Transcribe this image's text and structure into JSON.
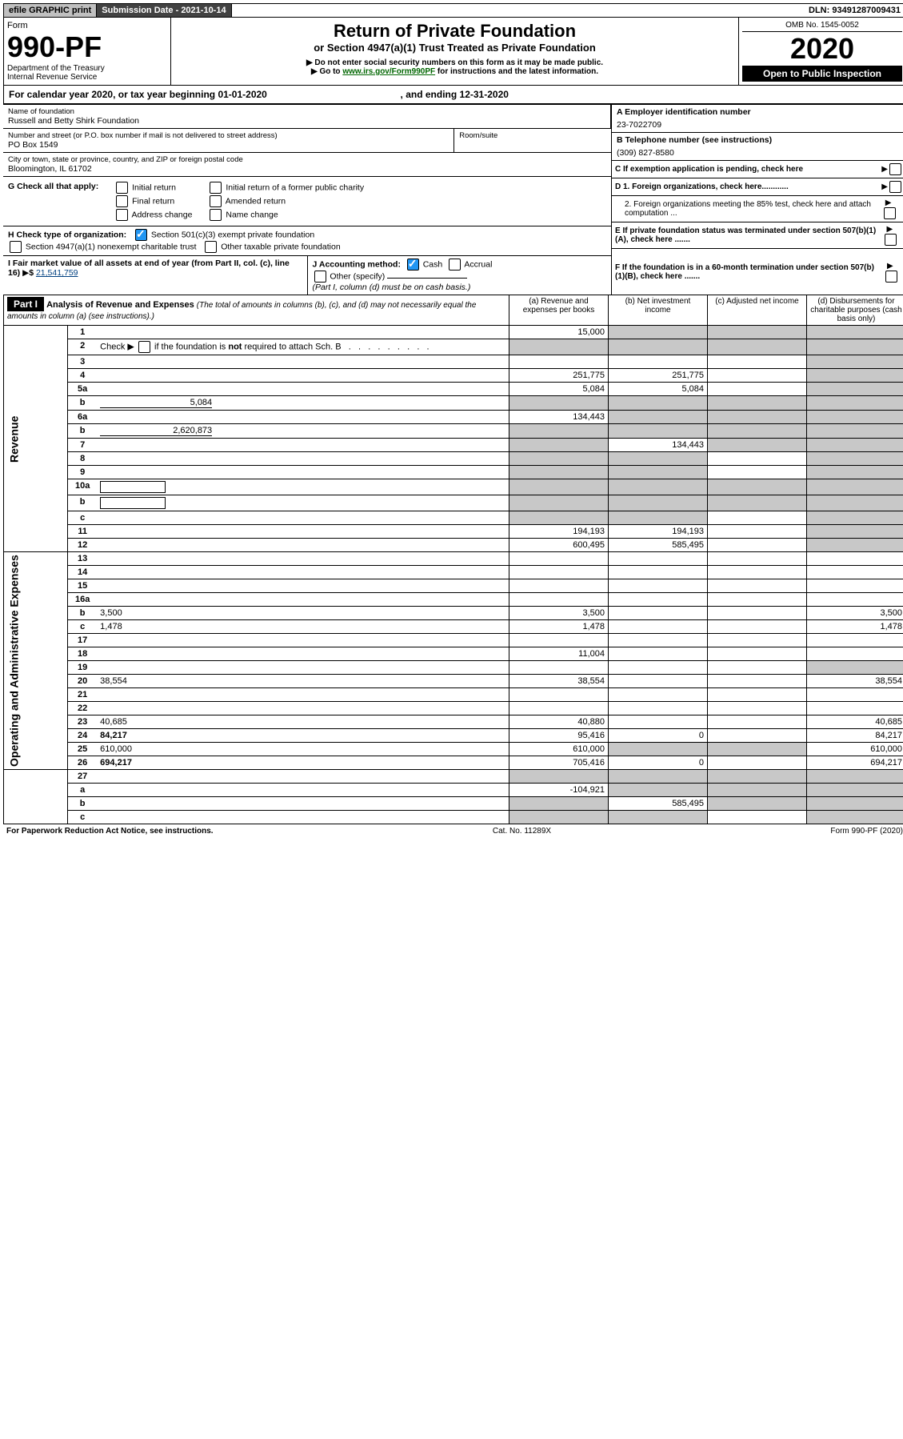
{
  "topbar": {
    "print": "efile GRAPHIC print",
    "subdate": "Submission Date - 2021-10-14",
    "dln": "DLN: 93491287009431"
  },
  "header": {
    "form": "Form",
    "formno": "990-PF",
    "dept": "Department of the Treasury",
    "irs": "Internal Revenue Service",
    "title": "Return of Private Foundation",
    "subtitle": "or Section 4947(a)(1) Trust Treated as Private Foundation",
    "note1": "▶ Do not enter social security numbers on this form as it may be made public.",
    "note2_pre": "▶ Go to ",
    "note2_link": "www.irs.gov/Form990PF",
    "note2_post": " for instructions and the latest information.",
    "omb": "OMB No. 1545-0052",
    "year": "2020",
    "openpub": "Open to Public Inspection"
  },
  "calyr": {
    "pre": "For calendar year 2020, or tax year beginning ",
    "begin": "01-01-2020",
    "mid": " , and ending ",
    "end": "12-31-2020"
  },
  "info": {
    "name_label": "Name of foundation",
    "name": "Russell and Betty Shirk Foundation",
    "addr_label": "Number and street (or P.O. box number if mail is not delivered to street address)",
    "addr": "PO Box 1549",
    "room_label": "Room/suite",
    "city_label": "City or town, state or province, country, and ZIP or foreign postal code",
    "city": "Bloomington, IL  61702",
    "ein_label": "A Employer identification number",
    "ein": "23-7022709",
    "tel_label": "B Telephone number (see instructions)",
    "tel": "(309) 827-8580",
    "c": "C If exemption application is pending, check here",
    "g": "G Check all that apply:",
    "g_opts": [
      "Initial return",
      "Final return",
      "Address change",
      "Initial return of a former public charity",
      "Amended return",
      "Name change"
    ],
    "d1": "D 1. Foreign organizations, check here............",
    "d2": "2. Foreign organizations meeting the 85% test, check here and attach computation ...",
    "e": "E If private foundation status was terminated under section 507(b)(1)(A), check here .......",
    "h": "H Check type of organization:",
    "h1": "Section 501(c)(3) exempt private foundation",
    "h2": "Section 4947(a)(1) nonexempt charitable trust",
    "h3": "Other taxable private foundation",
    "f": "F If the foundation is in a 60-month termination under section 507(b)(1)(B), check here .......",
    "i": "I Fair market value of all assets at end of year (from Part II, col. (c), line 16)",
    "i_val": "21,541,759",
    "j": "J Accounting method:",
    "j_cash": "Cash",
    "j_accr": "Accrual",
    "j_other": "Other (specify)",
    "j_note": "(Part I, column (d) must be on cash basis.)"
  },
  "part1": {
    "label": "Part I",
    "title": "Analysis of Revenue and Expenses",
    "title_note": "(The total of amounts in columns (b), (c), and (d) may not necessarily equal the amounts in column (a) (see instructions).)",
    "col_a": "(a) Revenue and expenses per books",
    "col_b": "(b) Net investment income",
    "col_c": "(c) Adjusted net income",
    "col_d": "(d) Disbursements for charitable purposes (cash basis only)"
  },
  "sections": {
    "rev": "Revenue",
    "exp": "Operating and Administrative Expenses"
  },
  "rows": [
    {
      "n": "1",
      "d": "",
      "a": "15,000",
      "b": "",
      "c": "",
      "sb": 1,
      "sc": 1,
      "sd": 1
    },
    {
      "n": "2",
      "d": "",
      "a": "",
      "b": "",
      "c": "",
      "sa": 1,
      "sb": 1,
      "sc": 1,
      "sd": 1,
      "html": 1
    },
    {
      "n": "3",
      "d": "",
      "a": "",
      "b": "",
      "c": "",
      "sd": 1
    },
    {
      "n": "4",
      "d": "",
      "a": "251,775",
      "b": "251,775",
      "c": "",
      "sd": 1
    },
    {
      "n": "5a",
      "d": "",
      "a": "5,084",
      "b": "5,084",
      "c": "",
      "sd": 1
    },
    {
      "n": "b",
      "d": "",
      "fill": "5,084",
      "a": "",
      "b": "",
      "c": "",
      "sa": 1,
      "sb": 1,
      "sc": 1,
      "sd": 1
    },
    {
      "n": "6a",
      "d": "",
      "a": "134,443",
      "b": "",
      "c": "",
      "sb": 1,
      "sc": 1,
      "sd": 1
    },
    {
      "n": "b",
      "d": "",
      "fill": "2,620,873",
      "a": "",
      "b": "",
      "c": "",
      "sa": 1,
      "sb": 1,
      "sc": 1,
      "sd": 1
    },
    {
      "n": "7",
      "d": "",
      "a": "",
      "b": "134,443",
      "c": "",
      "sa": 1,
      "sc": 1,
      "sd": 1
    },
    {
      "n": "8",
      "d": "",
      "a": "",
      "b": "",
      "c": "",
      "sa": 1,
      "sb": 1,
      "sd": 1
    },
    {
      "n": "9",
      "d": "",
      "a": "",
      "b": "",
      "c": "",
      "sa": 1,
      "sb": 1,
      "sd": 1
    },
    {
      "n": "10a",
      "d": "",
      "box": 1,
      "a": "",
      "b": "",
      "c": "",
      "sa": 1,
      "sb": 1,
      "sc": 1,
      "sd": 1
    },
    {
      "n": "b",
      "d": "",
      "box": 1,
      "a": "",
      "b": "",
      "c": "",
      "sa": 1,
      "sb": 1,
      "sc": 1,
      "sd": 1
    },
    {
      "n": "c",
      "d": "",
      "a": "",
      "b": "",
      "c": "",
      "sa": 1,
      "sb": 1,
      "sd": 1
    },
    {
      "n": "11",
      "d": "",
      "a": "194,193",
      "b": "194,193",
      "c": "",
      "sd": 1
    },
    {
      "n": "12",
      "d": "",
      "bold": 1,
      "a": "600,495",
      "b": "585,495",
      "c": "",
      "sd": 1
    },
    {
      "n": "13",
      "d": "",
      "a": "",
      "b": "",
      "c": ""
    },
    {
      "n": "14",
      "d": "",
      "a": "",
      "b": "",
      "c": ""
    },
    {
      "n": "15",
      "d": "",
      "a": "",
      "b": "",
      "c": ""
    },
    {
      "n": "16a",
      "d": "",
      "a": "",
      "b": "",
      "c": ""
    },
    {
      "n": "b",
      "d": "3,500",
      "a": "3,500",
      "b": "",
      "c": ""
    },
    {
      "n": "c",
      "d": "1,478",
      "a": "1,478",
      "b": "",
      "c": ""
    },
    {
      "n": "17",
      "d": "",
      "a": "",
      "b": "",
      "c": ""
    },
    {
      "n": "18",
      "d": "",
      "a": "11,004",
      "b": "",
      "c": ""
    },
    {
      "n": "19",
      "d": "",
      "a": "",
      "b": "",
      "c": "",
      "sd": 1
    },
    {
      "n": "20",
      "d": "38,554",
      "a": "38,554",
      "b": "",
      "c": ""
    },
    {
      "n": "21",
      "d": "",
      "a": "",
      "b": "",
      "c": ""
    },
    {
      "n": "22",
      "d": "",
      "a": "",
      "b": "",
      "c": ""
    },
    {
      "n": "23",
      "d": "40,685",
      "a": "40,880",
      "b": "",
      "c": ""
    },
    {
      "n": "24",
      "d": "84,217",
      "bold": 1,
      "a": "95,416",
      "b": "0",
      "c": ""
    },
    {
      "n": "25",
      "d": "610,000",
      "a": "610,000",
      "b": "",
      "c": "",
      "sb": 1,
      "sc": 1
    },
    {
      "n": "26",
      "d": "694,217",
      "bold": 1,
      "a": "705,416",
      "b": "0",
      "c": ""
    },
    {
      "n": "27",
      "d": "",
      "a": "",
      "b": "",
      "c": "",
      "sa": 1,
      "sb": 1,
      "sc": 1,
      "sd": 1
    },
    {
      "n": "a",
      "d": "",
      "bold": 1,
      "a": "-104,921",
      "b": "",
      "c": "",
      "sb": 1,
      "sc": 1,
      "sd": 1
    },
    {
      "n": "b",
      "d": "",
      "bold": 1,
      "a": "",
      "b": "585,495",
      "c": "",
      "sa": 1,
      "sc": 1,
      "sd": 1
    },
    {
      "n": "c",
      "d": "",
      "bold": 1,
      "a": "",
      "b": "",
      "c": "",
      "sa": 1,
      "sb": 1,
      "sd": 1
    }
  ],
  "footer": {
    "left": "For Paperwork Reduction Act Notice, see instructions.",
    "mid": "Cat. No. 11289X",
    "right": "Form 990-PF (2020)"
  }
}
